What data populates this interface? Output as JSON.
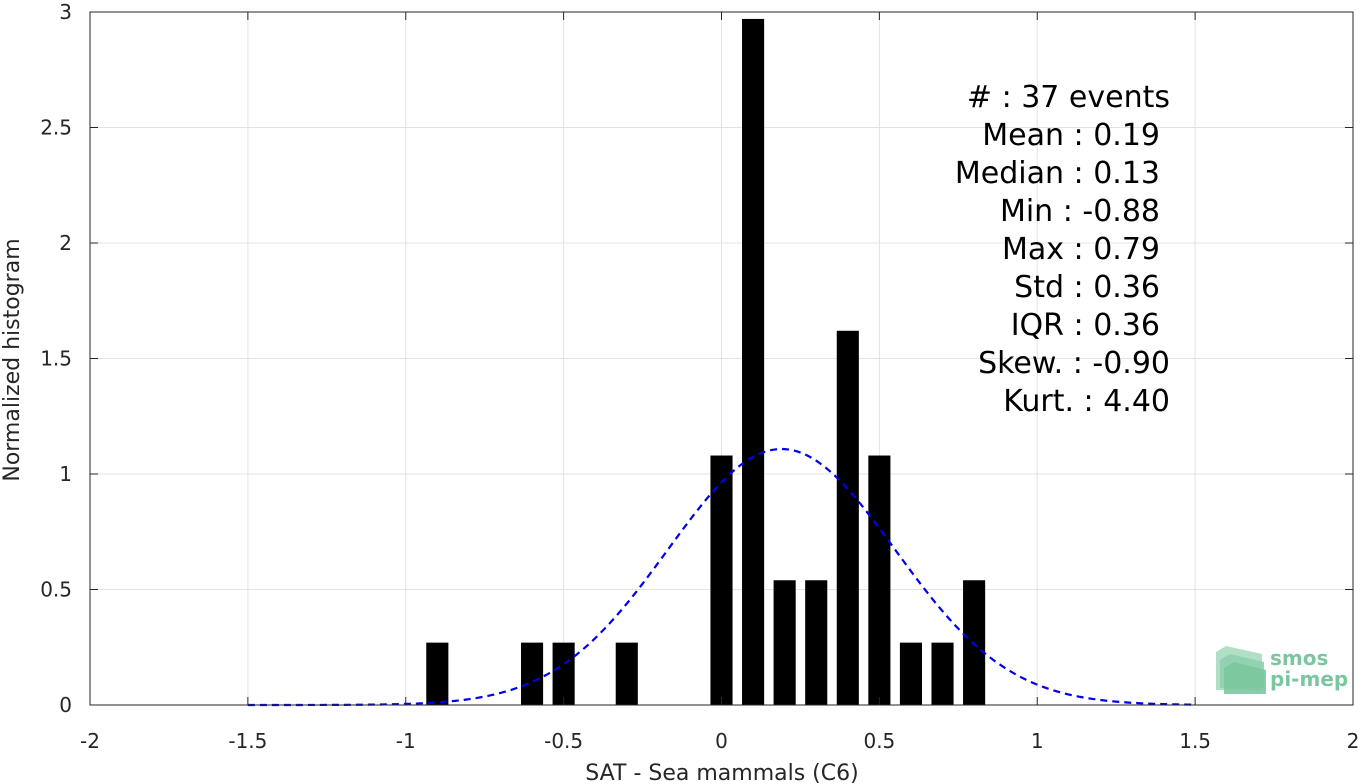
{
  "chart_data": {
    "type": "bar",
    "xlabel": "SAT - Sea mammals (C6)",
    "ylabel": "Normalized histogram",
    "xlim": [
      -2,
      2
    ],
    "ylim": [
      0,
      3
    ],
    "x_ticks": [
      "-2",
      "-1.5",
      "-1",
      "-0.5",
      "0",
      "0.5",
      "1",
      "1.5",
      "2"
    ],
    "y_ticks": [
      "0",
      "0.5",
      "1",
      "1.5",
      "2",
      "2.5",
      "3"
    ],
    "grid": true,
    "bins": [
      {
        "x": -0.9,
        "value": 0.27
      },
      {
        "x": -0.6,
        "value": 0.27
      },
      {
        "x": -0.5,
        "value": 0.27
      },
      {
        "x": -0.3,
        "value": 0.27
      },
      {
        "x": 0.0,
        "value": 1.08
      },
      {
        "x": 0.1,
        "value": 2.97
      },
      {
        "x": 0.2,
        "value": 0.54
      },
      {
        "x": 0.3,
        "value": 0.54
      },
      {
        "x": 0.4,
        "value": 1.62
      },
      {
        "x": 0.5,
        "value": 1.08
      },
      {
        "x": 0.6,
        "value": 0.27
      },
      {
        "x": 0.7,
        "value": 0.27
      },
      {
        "x": 0.8,
        "value": 0.54
      }
    ],
    "bar_color": "#000000",
    "fit_curve": {
      "style": "dashed",
      "color": "#0000ee",
      "mean": 0.19,
      "std": 0.36,
      "x_range": [
        -1.5,
        1.5
      ]
    },
    "stats": [
      "#  : 37 events",
      "Mean : 0.19",
      "Median : 0.13",
      "Min : -0.88",
      "Max : 0.79",
      "Std : 0.36",
      "IQR : 0.36",
      "Skew. : -0.90",
      "Kurt. : 4.40"
    ]
  },
  "logo": {
    "line1": "smos",
    "line2": "pi-mep",
    "color": "#6abf8f"
  }
}
